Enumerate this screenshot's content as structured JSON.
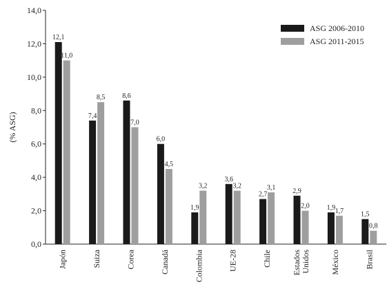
{
  "chart_data": {
    "type": "bar",
    "title": "",
    "xlabel": "",
    "ylabel": "(% ASG)",
    "ylim": [
      0,
      14
    ],
    "yticks": [
      "0,0",
      "2,0",
      "4,0",
      "6,0",
      "8,0",
      "10,0",
      "12,0",
      "14,0"
    ],
    "grid": false,
    "legend_position": "top-right",
    "categories": [
      [
        "Japón"
      ],
      [
        "Suiza"
      ],
      [
        "Corea"
      ],
      [
        "Canadá"
      ],
      [
        "Colombia"
      ],
      [
        "UE-28"
      ],
      [
        "Chile"
      ],
      [
        "Estados",
        "Unidos"
      ],
      [
        "México"
      ],
      [
        "Brasil"
      ]
    ],
    "series": [
      {
        "name": "ASG 2006-2010",
        "color": "#1a1a1a",
        "values": [
          12.1,
          7.4,
          8.6,
          6.0,
          1.9,
          3.6,
          2.7,
          2.9,
          1.9,
          1.5
        ],
        "labels": [
          "12,1",
          "7,4",
          "8,6",
          "6,0",
          "1,9",
          "3,6",
          "2,7",
          "2,9",
          "1,9",
          "1,5"
        ]
      },
      {
        "name": "ASG 2011-2015",
        "color": "#9e9e9e",
        "values": [
          11.0,
          8.5,
          7.0,
          4.5,
          3.2,
          3.2,
          3.1,
          2.0,
          1.7,
          0.8
        ],
        "labels": [
          "11,0",
          "8,5",
          "7,0",
          "4,5",
          "3,2",
          "3,2",
          "3,1",
          "2,0",
          "1,7",
          "0,8"
        ]
      }
    ]
  }
}
